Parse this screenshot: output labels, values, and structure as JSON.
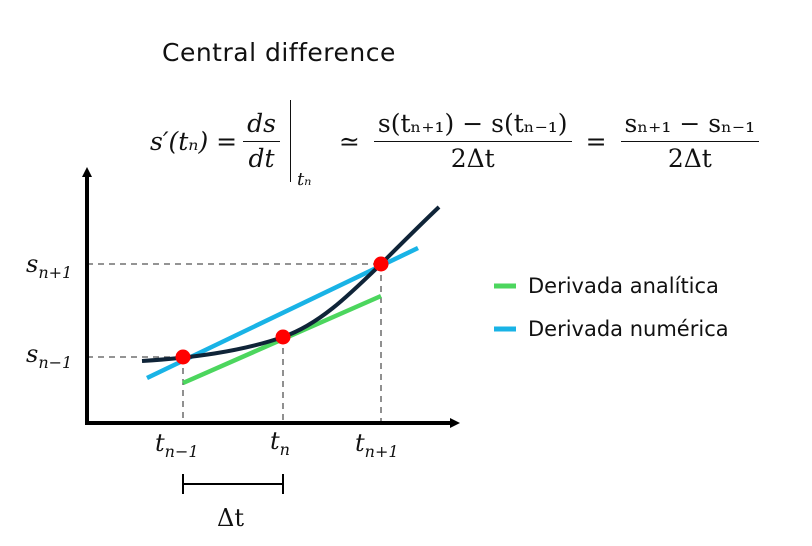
{
  "title": "Central difference",
  "formula": {
    "lhs": "s′(tₙ) =",
    "deriv_num": "ds",
    "deriv_den": "dt",
    "eval_at": "tₙ",
    "approx": "≃",
    "frac1_num": "s(tₙ₊₁) − s(tₙ₋₁)",
    "frac1_den": "2Δt",
    "equals": "=",
    "frac2_num": "sₙ₊₁ − sₙ₋₁",
    "frac2_den": "2Δt"
  },
  "axis_labels": {
    "s_np1_main": "s",
    "s_np1_sub": "n+1",
    "s_nm1_main": "s",
    "s_nm1_sub": "n−1",
    "t_nm1_main": "t",
    "t_nm1_sub": "n−1",
    "t_n_main": "t",
    "t_n_sub": "n",
    "t_np1_main": "t",
    "t_np1_sub": "n+1",
    "delta_t": "Δt"
  },
  "legend": {
    "analytic": "Derivada analítica",
    "numeric": "Derivada numérica"
  },
  "colors": {
    "curve": "#0f2438",
    "analytic": "#4cd65e",
    "numeric": "#19b3e6",
    "point": "#ff0000",
    "axis": "#000000",
    "guide": "#555555"
  }
}
